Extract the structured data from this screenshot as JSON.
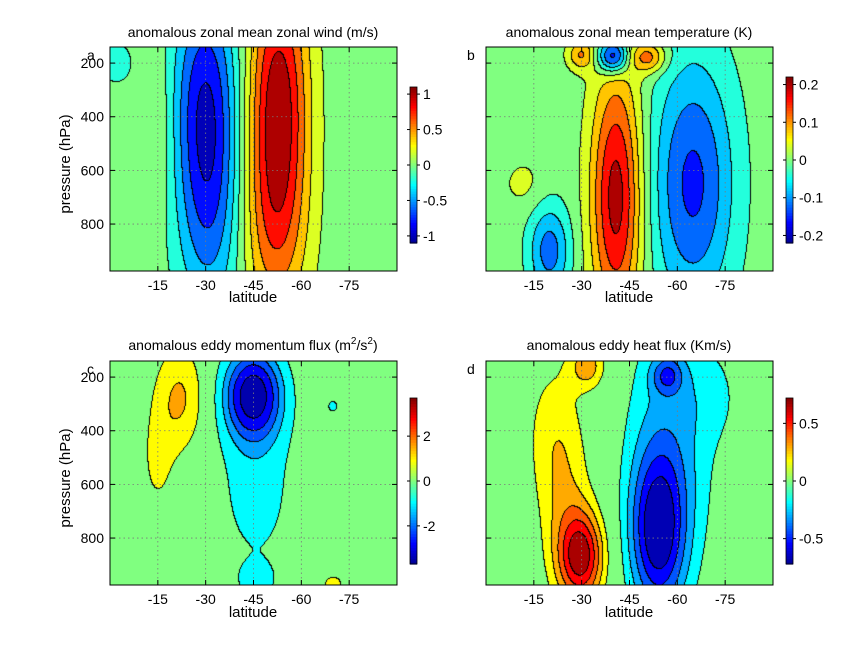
{
  "figure_colors": {
    "contour_lines": "#000000",
    "colormap": [
      "#00008f",
      "#0000ff",
      "#0080ff",
      "#00ffff",
      "#80ff80",
      "#ffff00",
      "#ff8000",
      "#ff0000",
      "#800000"
    ]
  },
  "chart_data": [
    {
      "panel": "a",
      "type": "heatmap",
      "subtype": "filled-contour",
      "title": "anomalous zonal mean zonal wind (m/s)",
      "title_sup": "",
      "title_tail": "",
      "xlabel": "latitude",
      "ylabel": "pressure (hPa)",
      "xlim": [
        0,
        -90
      ],
      "ylim": [
        975,
        140
      ],
      "xticks": [
        -15,
        -30,
        -45,
        -60,
        -75
      ],
      "xtick_labels": [
        "-15",
        "-30",
        "-45",
        "-60",
        "-75"
      ],
      "yticks": [
        200,
        400,
        600,
        800
      ],
      "ytick_labels": [
        "200",
        "400",
        "600",
        "800"
      ],
      "colorbar": {
        "range": [
          -1.1,
          1.1
        ],
        "ticks": [
          1,
          0.5,
          0,
          -0.5,
          -1
        ],
        "tick_labels": [
          "1",
          "0.5",
          "0",
          "-0.5",
          "-1"
        ]
      },
      "contour_levels": [
        -0.9,
        -0.7,
        -0.5,
        -0.3,
        -0.1,
        0.1,
        0.3,
        0.5,
        0.7,
        0.9
      ],
      "features": [
        {
          "lat": -30,
          "p": 300,
          "lat_width": 7,
          "p_width": 300,
          "amplitude": -0.75
        },
        {
          "lat": -31,
          "p": 750,
          "lat_width": 7,
          "p_width": 300,
          "amplitude": -0.55
        },
        {
          "lat": -53,
          "p": 300,
          "lat_width": 6.5,
          "p_width": 330,
          "amplitude": 0.95
        },
        {
          "lat": -52,
          "p": 800,
          "lat_width": 7,
          "p_width": 280,
          "amplitude": 0.55
        },
        {
          "lat": -15,
          "p": 450,
          "lat_width": 3.5,
          "p_width": 220,
          "amplitude": 0.15
        },
        {
          "lat": -2,
          "p": 200,
          "lat_width": 4,
          "p_width": 60,
          "amplitude": -0.2
        }
      ]
    },
    {
      "panel": "b",
      "type": "heatmap",
      "subtype": "filled-contour",
      "title": "anomalous zonal mean temperature (K)",
      "title_sup": "",
      "title_tail": "",
      "xlabel": "latitude",
      "ylabel": "",
      "xlim": [
        0,
        -90
      ],
      "ylim": [
        975,
        140
      ],
      "xticks": [
        -15,
        -30,
        -45,
        -60,
        -75
      ],
      "xtick_labels": [
        "-15",
        "-30",
        "-45",
        "-60",
        "-75"
      ],
      "yticks": [
        200,
        400,
        600,
        800
      ],
      "ytick_labels": [
        "",
        "",
        "",
        ""
      ],
      "colorbar": {
        "range": [
          -0.22,
          0.22
        ],
        "ticks": [
          0.2,
          0.1,
          0,
          -0.1,
          -0.2
        ],
        "tick_labels": [
          "0.2",
          "0.1",
          "0",
          "-0.1",
          "-0.2"
        ]
      },
      "contour_levels": [
        -0.18,
        -0.14,
        -0.1,
        -0.06,
        -0.02,
        0.02,
        0.06,
        0.1,
        0.14,
        0.18
      ],
      "features": [
        {
          "lat": -41,
          "p": 700,
          "lat_width": 5.5,
          "p_width": 330,
          "amplitude": 0.2
        },
        {
          "lat": -65,
          "p": 650,
          "lat_width": 9,
          "p_width": 330,
          "amplitude": -0.15
        },
        {
          "lat": -40,
          "p": 175,
          "lat_width": 3.5,
          "p_width": 45,
          "amplitude": -0.2
        },
        {
          "lat": -30,
          "p": 170,
          "lat_width": 3,
          "p_width": 40,
          "amplitude": 0.1
        },
        {
          "lat": -51,
          "p": 180,
          "lat_width": 4,
          "p_width": 40,
          "amplitude": 0.12
        },
        {
          "lat": -20,
          "p": 900,
          "lat_width": 4.5,
          "p_width": 120,
          "amplitude": -0.12
        },
        {
          "lat": -12,
          "p": 650,
          "lat_width": 5,
          "p_width": 70,
          "amplitude": 0.03
        }
      ]
    },
    {
      "panel": "c",
      "type": "heatmap",
      "subtype": "filled-contour",
      "title": "anomalous eddy momentum flux (m",
      "title_sup": "2",
      "title_tail": "/s",
      "title_sup2": "2",
      "title_end": ")",
      "xlabel": "latitude",
      "ylabel": "pressure (hPa)",
      "xlim": [
        0,
        -90
      ],
      "ylim": [
        975,
        140
      ],
      "xticks": [
        -15,
        -30,
        -45,
        -60,
        -75
      ],
      "xtick_labels": [
        "-15",
        "-30",
        "-45",
        "-60",
        "-75"
      ],
      "yticks": [
        200,
        400,
        600,
        800
      ],
      "ytick_labels": [
        "200",
        "400",
        "600",
        "800"
      ],
      "colorbar": {
        "range": [
          -3.7,
          3.7
        ],
        "ticks": [
          2,
          0,
          -2
        ],
        "tick_labels": [
          "2",
          "0",
          "-2"
        ]
      },
      "contour_levels": [
        -3.2,
        -2.5,
        -1.9,
        -1.3,
        -0.6,
        0.6,
        1.3,
        1.9
      ],
      "features": [
        {
          "lat": -45,
          "p": 265,
          "lat_width": 6.5,
          "p_width": 120,
          "amplitude": -3.5
        },
        {
          "lat": -46,
          "p": 600,
          "lat_width": 9,
          "p_width": 250,
          "amplitude": -0.9
        },
        {
          "lat": -22,
          "p": 280,
          "lat_width": 5.5,
          "p_width": 140,
          "amplitude": 1.4
        },
        {
          "lat": -15,
          "p": 520,
          "lat_width": 4,
          "p_width": 150,
          "amplitude": 0.7
        },
        {
          "lat": -70,
          "p": 310,
          "lat_width": 2,
          "p_width": 30,
          "amplitude": -0.7
        },
        {
          "lat": -46,
          "p": 960,
          "lat_width": 4.5,
          "p_width": 50,
          "amplitude": -0.7
        },
        {
          "lat": -70,
          "p": 970,
          "lat_width": 4.5,
          "p_width": 40,
          "amplitude": 0.7
        }
      ]
    },
    {
      "panel": "d",
      "type": "heatmap",
      "subtype": "filled-contour",
      "title": "anomalous eddy heat flux (Km/s)",
      "title_sup": "",
      "title_tail": "",
      "xlabel": "latitude",
      "ylabel": "",
      "xlim": [
        0,
        -90
      ],
      "ylim": [
        975,
        140
      ],
      "xticks": [
        -15,
        -30,
        -45,
        -60,
        -75
      ],
      "xtick_labels": [
        "-15",
        "-30",
        "-45",
        "-60",
        "-75"
      ],
      "yticks": [
        200,
        400,
        600,
        800
      ],
      "ytick_labels": [
        "",
        "",
        "",
        ""
      ],
      "colorbar": {
        "range": [
          -0.72,
          0.72
        ],
        "ticks": [
          0.5,
          0,
          -0.5
        ],
        "tick_labels": [
          "0.5",
          "0",
          "-0.5"
        ]
      },
      "contour_levels": [
        -0.6,
        -0.48,
        -0.36,
        -0.24,
        -0.12,
        0.12,
        0.24,
        0.36,
        0.48,
        0.6
      ],
      "features": [
        {
          "lat": -30,
          "p": 870,
          "lat_width": 5,
          "p_width": 120,
          "amplitude": 0.62
        },
        {
          "lat": -25,
          "p": 650,
          "lat_width": 6,
          "p_width": 260,
          "amplitude": 0.2
        },
        {
          "lat": -32,
          "p": 160,
          "lat_width": 4,
          "p_width": 60,
          "amplitude": 0.3
        },
        {
          "lat": -20,
          "p": 400,
          "lat_width": 6,
          "p_width": 200,
          "amplitude": 0.12
        },
        {
          "lat": -54,
          "p": 780,
          "lat_width": 6,
          "p_width": 210,
          "amplitude": -0.6
        },
        {
          "lat": -57,
          "p": 195,
          "lat_width": 3.5,
          "p_width": 50,
          "amplitude": -0.32
        },
        {
          "lat": -58,
          "p": 450,
          "lat_width": 10,
          "p_width": 380,
          "amplitude": -0.26
        },
        {
          "lat": -72,
          "p": 270,
          "lat_width": 6,
          "p_width": 120,
          "amplitude": -0.1
        }
      ]
    }
  ]
}
